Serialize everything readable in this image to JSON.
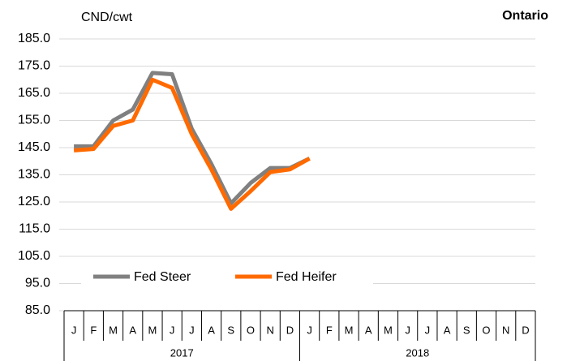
{
  "chart_data": {
    "type": "line",
    "title": "Ontario",
    "y_label": "CND/cwt",
    "categories": [
      "J",
      "F",
      "M",
      "A",
      "M",
      "J",
      "J",
      "A",
      "S",
      "O",
      "N",
      "D",
      "J",
      "F",
      "M",
      "A",
      "M",
      "J",
      "J",
      "A",
      "S",
      "O",
      "N",
      "D"
    ],
    "groups": [
      "2017",
      "2018"
    ],
    "series": [
      {
        "name": "Fed Steer",
        "color": "#808080",
        "values": [
          145.5,
          145.5,
          155,
          159,
          172.5,
          172,
          152,
          139,
          124.5,
          132,
          137.5,
          137.5,
          141,
          null,
          null,
          null,
          null,
          null,
          null,
          null,
          null,
          null,
          null,
          null
        ]
      },
      {
        "name": "Fed Heifer",
        "color": "#ff6a00",
        "values": [
          144,
          144.5,
          153,
          155,
          170,
          167,
          150,
          137,
          122.5,
          129,
          136,
          137,
          141,
          null,
          null,
          null,
          null,
          null,
          null,
          null,
          null,
          null,
          null,
          null
        ]
      }
    ],
    "ylim": [
      85,
      185
    ],
    "yticks": [
      {
        "value": 85,
        "label": "85.0"
      },
      {
        "value": 95,
        "label": "95.0"
      },
      {
        "value": 105,
        "label": "105.0"
      },
      {
        "value": 115,
        "label": "115.0"
      },
      {
        "value": 125,
        "label": "125.0"
      },
      {
        "value": 135,
        "label": "135.0"
      },
      {
        "value": 145,
        "label": "145.0"
      },
      {
        "value": 155,
        "label": "155.0"
      },
      {
        "value": 165,
        "label": "165.0"
      },
      {
        "value": 175,
        "label": "175.0"
      },
      {
        "value": 185,
        "label": "185.0"
      }
    ],
    "grid": true
  }
}
